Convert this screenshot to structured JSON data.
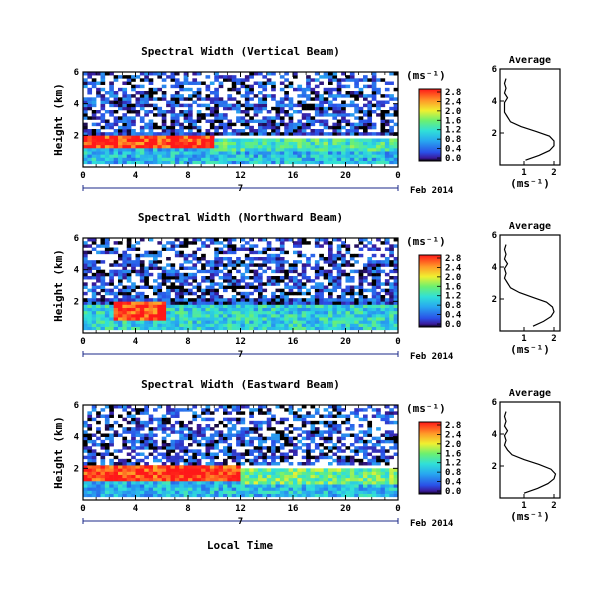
{
  "figure": {
    "xlabel": "Local Time",
    "date_label": "Feb 2014",
    "day_label": "7",
    "ylabel": "Height (km)",
    "colorbar_unit": "(ms⁻¹)",
    "avg_title": "Average",
    "avg_xlabel": "(ms⁻¹)"
  },
  "chart_data": [
    {
      "type": "heatmap",
      "title": "Spectral Width (Vertical Beam)",
      "x_ticks": [
        "0",
        "4",
        "8",
        "12",
        "16",
        "20",
        "0"
      ],
      "y_ticks": [
        "2",
        "4",
        "6"
      ],
      "xlim": [
        0,
        24
      ],
      "ylim": [
        0,
        6
      ],
      "xlabel": "",
      "ylabel": "Height (km)",
      "colorbar": {
        "min": 0.0,
        "max": 2.8,
        "ticks": [
          "2.8",
          "2.4",
          "2.0",
          "1.6",
          "1.2",
          "0.8",
          "0.4",
          "0.0"
        ]
      },
      "regions": [
        {
          "x": [
            0,
            10
          ],
          "y": [
            1.2,
            2.1
          ],
          "value": 2.7
        },
        {
          "x": [
            10,
            24
          ],
          "y": [
            1.1,
            1.9
          ],
          "value": 1.3
        },
        {
          "x": [
            0,
            24
          ],
          "y": [
            0.3,
            1.2
          ],
          "value": 0.9
        },
        {
          "x": [
            0,
            24
          ],
          "y": [
            2.1,
            6.0
          ],
          "value": 0.3
        }
      ],
      "average": {
        "title": "Average",
        "xlabel": "(ms⁻¹)",
        "x_ticks": [
          "1",
          "2"
        ],
        "y_ticks": [
          "2",
          "4",
          "6"
        ],
        "xlim": [
          0.2,
          2.2
        ],
        "ylim": [
          0,
          6
        ],
        "height": [
          0.3,
          0.6,
          0.9,
          1.2,
          1.5,
          1.8,
          2.1,
          2.4,
          2.7,
          3.0,
          3.3,
          3.6,
          3.9,
          4.2,
          4.5,
          4.8,
          5.1,
          5.4
        ],
        "width": [
          1.05,
          1.5,
          1.85,
          2.0,
          2.0,
          1.85,
          1.4,
          0.9,
          0.55,
          0.45,
          0.35,
          0.35,
          0.35,
          0.45,
          0.35,
          0.4,
          0.35,
          0.4
        ]
      }
    },
    {
      "type": "heatmap",
      "title": "Spectral Width (Northward Beam)",
      "x_ticks": [
        "0",
        "4",
        "8",
        "12",
        "16",
        "20",
        "0"
      ],
      "y_ticks": [
        "2",
        "4",
        "6"
      ],
      "xlim": [
        0,
        24
      ],
      "ylim": [
        0,
        6
      ],
      "xlabel": "",
      "ylabel": "Height (km)",
      "colorbar": {
        "min": 0.0,
        "max": 2.8,
        "ticks": [
          "2.8",
          "2.4",
          "2.0",
          "1.6",
          "1.2",
          "0.8",
          "0.4",
          "0.0"
        ]
      },
      "regions": [
        {
          "x": [
            2.5,
            6.5
          ],
          "y": [
            0.8,
            2.1
          ],
          "value": 2.7
        },
        {
          "x": [
            0,
            24
          ],
          "y": [
            0.3,
            1.9
          ],
          "value": 1.1
        },
        {
          "x": [
            0,
            24
          ],
          "y": [
            1.9,
            6.0
          ],
          "value": 0.3
        }
      ],
      "average": {
        "title": "Average",
        "xlabel": "(ms⁻¹)",
        "x_ticks": [
          "1",
          "2"
        ],
        "y_ticks": [
          "2",
          "4",
          "6"
        ],
        "xlim": [
          0.2,
          2.2
        ],
        "ylim": [
          0,
          6
        ],
        "height": [
          0.3,
          0.6,
          0.9,
          1.2,
          1.5,
          1.8,
          2.1,
          2.4,
          2.7,
          3.0,
          3.3,
          3.6,
          3.9,
          4.2,
          4.5,
          4.8,
          5.1,
          5.4
        ],
        "width": [
          1.3,
          1.65,
          1.9,
          2.0,
          1.95,
          1.75,
          1.3,
          0.85,
          0.55,
          0.45,
          0.35,
          0.4,
          0.35,
          0.45,
          0.35,
          0.4,
          0.35,
          0.4
        ]
      }
    },
    {
      "type": "heatmap",
      "title": "Spectral Width (Eastward Beam)",
      "x_ticks": [
        "0",
        "4",
        "8",
        "12",
        "16",
        "20",
        "0"
      ],
      "y_ticks": [
        "2",
        "4",
        "6"
      ],
      "xlim": [
        0,
        24
      ],
      "ylim": [
        0,
        6
      ],
      "xlabel": "Local Time",
      "ylabel": "Height (km)",
      "colorbar": {
        "min": 0.0,
        "max": 2.8,
        "ticks": [
          "2.8",
          "2.4",
          "2.0",
          "1.6",
          "1.2",
          "0.8",
          "0.4",
          "0.0"
        ]
      },
      "regions": [
        {
          "x": [
            0,
            12
          ],
          "y": [
            1.2,
            2.3
          ],
          "value": 2.7
        },
        {
          "x": [
            12,
            24
          ],
          "y": [
            1.0,
            2.0
          ],
          "value": 1.5
        },
        {
          "x": [
            0,
            24
          ],
          "y": [
            0.3,
            1.2
          ],
          "value": 0.9
        },
        {
          "x": [
            0,
            24
          ],
          "y": [
            2.3,
            6.0
          ],
          "value": 0.3
        }
      ],
      "average": {
        "title": "Average",
        "xlabel": "(ms⁻¹)",
        "x_ticks": [
          "1",
          "2"
        ],
        "y_ticks": [
          "2",
          "4",
          "6"
        ],
        "xlim": [
          0.2,
          2.2
        ],
        "ylim": [
          0,
          6
        ],
        "height": [
          0.3,
          0.6,
          0.9,
          1.2,
          1.5,
          1.8,
          2.1,
          2.4,
          2.7,
          3.0,
          3.3,
          3.6,
          3.9,
          4.2,
          4.5,
          4.8,
          5.1,
          5.4
        ],
        "width": [
          1.0,
          1.45,
          1.8,
          2.0,
          2.05,
          1.9,
          1.5,
          1.0,
          0.6,
          0.45,
          0.35,
          0.4,
          0.35,
          0.45,
          0.35,
          0.4,
          0.35,
          0.4
        ]
      }
    }
  ]
}
